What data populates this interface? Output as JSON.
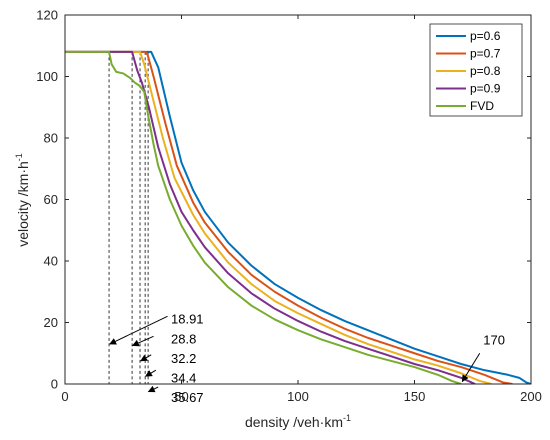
{
  "chart_data": {
    "type": "line",
    "xlabel": "density /veh·km",
    "xlabel_sup": "-1",
    "ylabel": "velocity /km·h",
    "ylabel_sup": "-1",
    "xlim": [
      0,
      200
    ],
    "ylim": [
      0,
      120
    ],
    "xticks": [
      0,
      50,
      100,
      150,
      200
    ],
    "yticks": [
      0,
      20,
      40,
      60,
      80,
      100,
      120
    ],
    "grid": false,
    "legend_position": "top-right",
    "series": [
      {
        "name": "p=0.6",
        "color": "#0072BD",
        "x": [
          0,
          35.67,
          37,
          40,
          45,
          50,
          55,
          60,
          70,
          80,
          90,
          100,
          110,
          120,
          130,
          140,
          150,
          160,
          170,
          180,
          190,
          195,
          198,
          200
        ],
        "y": [
          108,
          108,
          108,
          103,
          87,
          72,
          63,
          56,
          46,
          38.5,
          32.5,
          28,
          24,
          20.5,
          17.5,
          14.5,
          11.5,
          9,
          6.5,
          4.5,
          3,
          2,
          0.5,
          0
        ]
      },
      {
        "name": "p=0.7",
        "color": "#D95319",
        "x": [
          0,
          34.4,
          35.5,
          38,
          43,
          48,
          55,
          60,
          70,
          80,
          90,
          100,
          110,
          120,
          130,
          140,
          150,
          160,
          170,
          180,
          188,
          192
        ],
        "y": [
          108,
          108,
          107,
          100,
          85,
          71,
          59,
          52.5,
          43,
          35.5,
          30,
          25.5,
          21.5,
          18,
          15,
          12.5,
          10,
          7.5,
          5.5,
          3,
          0.5,
          0
        ]
      },
      {
        "name": "p=0.8",
        "color": "#EDB120",
        "x": [
          0,
          32.2,
          34,
          37,
          42,
          47,
          55,
          60,
          70,
          80,
          90,
          100,
          110,
          120,
          130,
          140,
          150,
          160,
          170,
          178,
          183
        ],
        "y": [
          108,
          108,
          104,
          95,
          80,
          67,
          55,
          49,
          39.5,
          32.5,
          27,
          23,
          19.5,
          16,
          13,
          10.5,
          8,
          6,
          3.5,
          1,
          0
        ]
      },
      {
        "name": "p=0.9",
        "color": "#7E2F8E",
        "x": [
          0,
          28.8,
          31,
          33,
          36,
          40,
          45,
          50,
          55,
          60,
          70,
          80,
          90,
          100,
          110,
          120,
          130,
          140,
          150,
          160,
          170,
          176
        ],
        "y": [
          108,
          108,
          102,
          98,
          90,
          77,
          65,
          56,
          50,
          44.5,
          36,
          29.5,
          24.5,
          20.5,
          17,
          14,
          11.5,
          9,
          6.5,
          4.5,
          2,
          0
        ]
      },
      {
        "name": "FVD",
        "color": "#77AC30",
        "x": [
          0,
          18.91,
          20,
          22,
          25,
          28,
          30,
          32,
          34,
          36,
          38,
          40,
          45,
          50,
          55,
          60,
          70,
          80,
          90,
          100,
          110,
          120,
          130,
          140,
          150,
          160,
          166,
          170
        ],
        "y": [
          108,
          108,
          104,
          101.5,
          101,
          99.5,
          98,
          97,
          95,
          86,
          78,
          71,
          60,
          51.5,
          45,
          39.5,
          31.5,
          25.5,
          21,
          17.5,
          14.5,
          12,
          9.5,
          7.5,
          5.5,
          3,
          1,
          0
        ]
      }
    ],
    "critical_lines": [
      18.91,
      28.8,
      32.2,
      34.4,
      35.67
    ],
    "critical_top": 108,
    "annotations": [
      {
        "text": "18.91",
        "text_x": 45.5,
        "text_y": 19.6,
        "arrow_from": [
          44,
          22
        ],
        "arrow_to": [
          19.2,
          13
        ]
      },
      {
        "text": "28.8",
        "text_x": 45.5,
        "text_y": 13.2,
        "arrow_from": [
          38,
          15.5
        ],
        "arrow_to": [
          29,
          12.5
        ]
      },
      {
        "text": "32.2",
        "text_x": 45.5,
        "text_y": 6.9,
        "arrow_from": [
          37,
          9.5
        ],
        "arrow_to": [
          32.5,
          7.5
        ]
      },
      {
        "text": "34.4",
        "text_x": 45.5,
        "text_y": 0.5,
        "arrow_from": [
          39,
          4.5
        ],
        "arrow_to": [
          34.6,
          2.5
        ]
      },
      {
        "text": "35.67",
        "text_x": 45.5,
        "text_y": -5.8,
        "arrow_from": [
          40,
          -1
        ],
        "arrow_to": [
          35.8,
          -2.5
        ]
      },
      {
        "text": "170",
        "text_x": 179.5,
        "text_y": 12.8,
        "arrow_from": [
          178,
          10
        ],
        "arrow_to": [
          170.5,
          0.8
        ]
      }
    ]
  }
}
